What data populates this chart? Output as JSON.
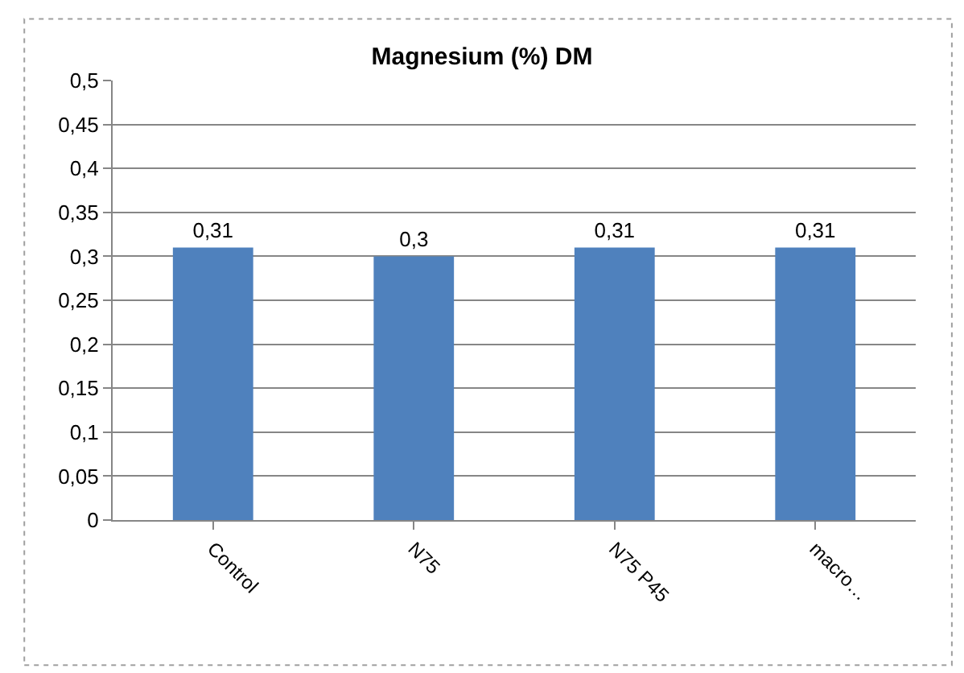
{
  "chart_data": {
    "type": "bar",
    "title": "Magnesium (%) DM",
    "categories": [
      "Control",
      "N75",
      "N75 P45",
      "macro…"
    ],
    "values": [
      0.31,
      0.3,
      0.31,
      0.31
    ],
    "value_labels": [
      "0,31",
      "0,3",
      "0,31",
      "0,31"
    ],
    "color": "#4f81bd",
    "ylim": [
      0,
      0.5
    ],
    "yticks": [
      0,
      {
        "value": 0.05,
        "label": "0,05"
      },
      {
        "value": 0.1,
        "label": "0,1"
      },
      {
        "value": 0.15,
        "label": "0,15"
      },
      {
        "value": 0.2,
        "label": "0,2"
      },
      {
        "value": 0.25,
        "label": "0,25"
      },
      {
        "value": 0.3,
        "label": "0,3"
      },
      {
        "value": 0.35,
        "label": "0,35"
      },
      {
        "value": 0.4,
        "label": "0,4"
      },
      {
        "value": 0.45,
        "label": "0,45"
      },
      {
        "value": 0.5,
        "label": "0,5"
      }
    ],
    "grid": "y"
  }
}
